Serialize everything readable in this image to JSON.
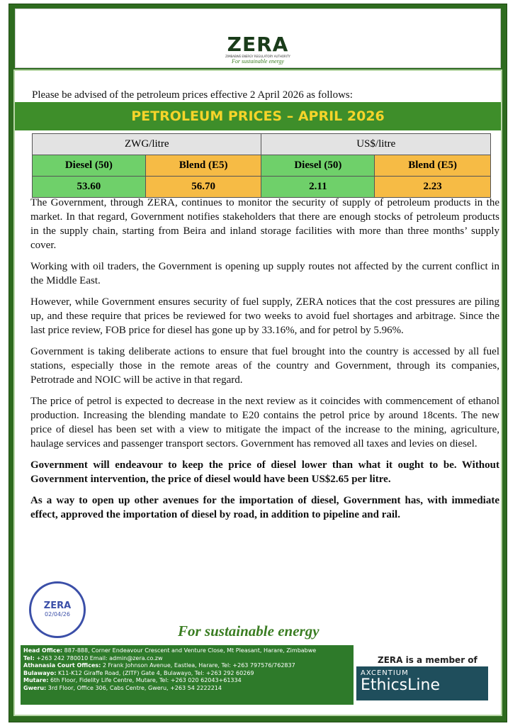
{
  "header": {
    "logo": "ZERA",
    "logo_subtitle": "ZIMBABWE ENERGY REGULATORY AUTHORITY",
    "tagline": "For sustainable energy"
  },
  "intro": "Please be advised of the petroleum prices effective 2 April 2026 as follows:",
  "banner": "PETROLEUM PRICES – APRIL 2026",
  "table": {
    "currencies": [
      "ZWG/litre",
      "US$/litre"
    ],
    "products": [
      "Diesel (50)",
      "Blend (E5)",
      "Diesel (50)",
      "Blend (E5)"
    ],
    "prices": [
      "53.60",
      "56.70",
      "2.11",
      "2.23"
    ]
  },
  "paragraphs": [
    "The Government, through ZERA, continues to monitor the security of supply of petroleum products in the market. In that regard, Government notifies stakeholders that there are enough stocks of petroleum products in the supply chain, starting from Beira and inland storage facilities with more than three months’ supply cover.",
    "Working with oil traders, the Government is opening up supply routes not affected by the current conflict in the Middle East.",
    "However, while Government ensures security of fuel supply, ZERA notices that the cost pressures are piling up, and these require that prices be reviewed for two weeks to avoid fuel shortages and arbitrage. Since the last price review, FOB price for diesel has gone up by 33.16%, and for petrol by 5.96%.",
    "Government is taking deliberate actions to ensure that fuel brought into the country is accessed by all fuel stations, especially those in the remote areas of the country and Government, through its companies, Petrotrade and NOIC will be active in that regard.",
    "The price of petrol is expected to decrease in the next review as it coincides with commencement of ethanol production. Increasing the blending mandate to E20 contains the petrol price by around 18cents. The new price of diesel has been set with a view to mitigate the impact of the increase to the mining, agriculture, haulage services and passenger transport sectors. Government has removed all taxes and levies on diesel."
  ],
  "bold_paragraphs": [
    "Government will endeavour to keep the price of diesel lower than what it ought to be. Without Government intervention, the price of diesel would have been US$2.65 per litre.",
    "As a way to open up other avenues for the importation of diesel, Government has, with immediate effect, approved the importation of diesel by road, in addition to pipeline and rail."
  ],
  "stamp": {
    "name": "ZERA",
    "date": "02/04/26"
  },
  "footer": {
    "tagline": "For sustainable energy",
    "addresses": [
      {
        "label": "Head Office:",
        "text": "887-888, Corner Endeavour Crescent and Venture Close, Mt Pleasant, Harare, Zimbabwe"
      },
      {
        "label": "Tel:",
        "text": "+263 242 780010  Email: admin@zera.co.zw"
      },
      {
        "label": "Athanasia Court Offices:",
        "text": "2 Frank Johnson Avenue, Eastlea, Harare, Tel: +263 797576/762837"
      },
      {
        "label": "Bulawayo:",
        "text": "K11-K12 Giraffe Road, (ZITF) Gate 4, Bulawayo, Tel: +263 292 60269"
      },
      {
        "label": "Mutare:",
        "text": "6th Floor, Fidelity Life Centre, Mutare, Tel: +263 020 62043+61334"
      },
      {
        "label": "Gweru:",
        "text": "3rd Floor, Office 306, Cabs Centre, Gweru, +263 54 2222214"
      }
    ],
    "member": "ZERA is a member of",
    "partner_top": "AXCENTIUM",
    "partner": "EthicsLine"
  }
}
